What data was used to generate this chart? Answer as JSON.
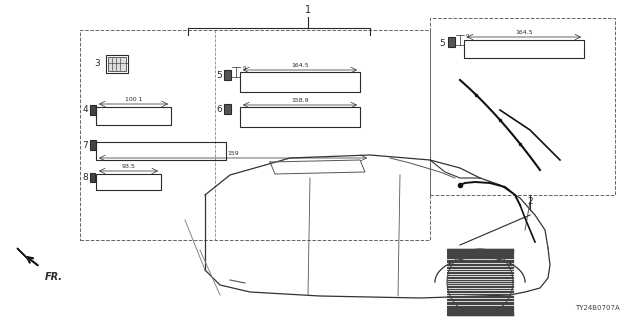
{
  "bg_color": "#ffffff",
  "line_color": "#2a2a2a",
  "part_number": "TY24B0707A",
  "fig_w": 6.4,
  "fig_h": 3.2,
  "dpi": 100
}
